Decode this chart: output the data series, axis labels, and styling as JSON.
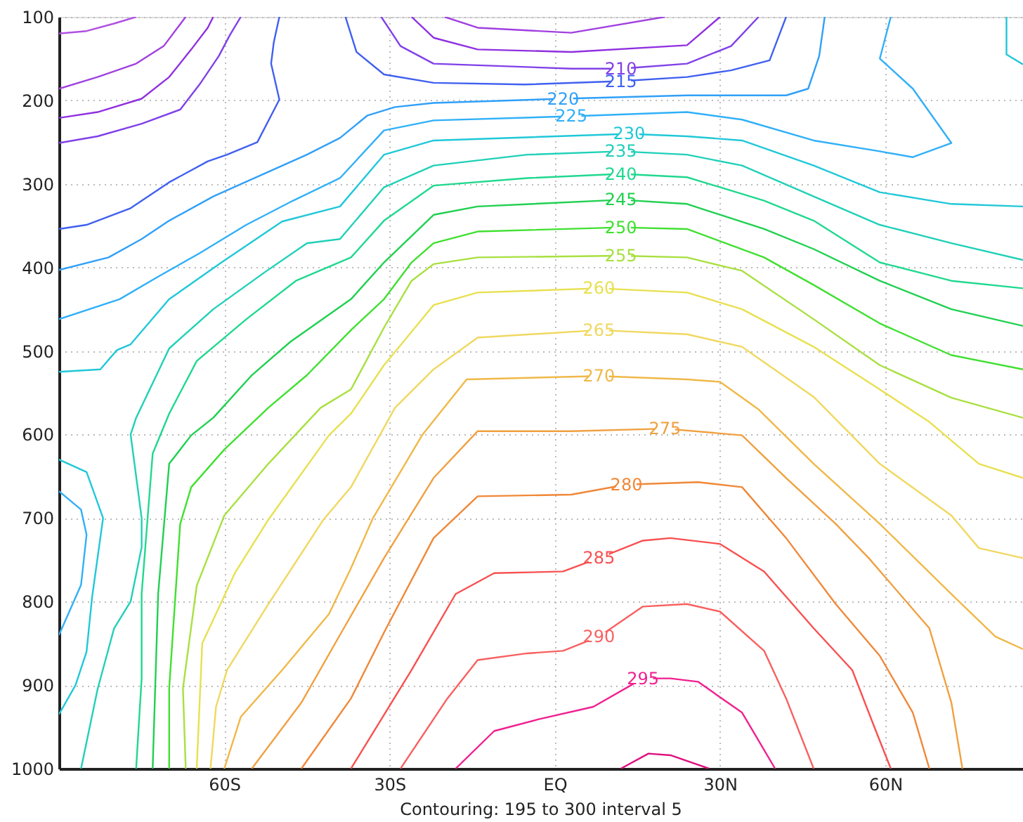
{
  "chart_data": {
    "type": "line",
    "xlim": [
      -90,
      85
    ],
    "ylim": [
      1000,
      100
    ],
    "xticks": [
      {
        "value": -60,
        "label": "60S"
      },
      {
        "value": -30,
        "label": "30S"
      },
      {
        "value": 0,
        "label": "EQ"
      },
      {
        "value": 30,
        "label": "30N"
      },
      {
        "value": 60,
        "label": "60N"
      }
    ],
    "yticks": [
      100,
      200,
      300,
      400,
      500,
      600,
      700,
      800,
      900,
      1000
    ],
    "grid": true,
    "annotations": [
      "Contouring: 195 to 300 interval 5"
    ],
    "series": [
      {
        "color": "#b050e0",
        "x": [
          -90,
          -85,
          -80,
          -76
        ],
        "values": [
          120,
          117,
          108,
          100
        ]
      },
      {
        "color": "#a040e0",
        "x": [
          -90,
          -83,
          -76,
          -71,
          -67
        ],
        "values": [
          186,
          172,
          156,
          135,
          100
        ]
      },
      {
        "color": "#a040e0",
        "x": [
          -20,
          -14,
          3,
          20
        ],
        "values": [
          100,
          113,
          119,
          100
        ]
      },
      {
        "color": "#9030e0",
        "x": [
          -90,
          -83,
          -75,
          -70,
          -66,
          -63,
          -62
        ],
        "values": [
          221,
          214,
          198,
          172,
          139,
          113,
          100
        ]
      },
      {
        "color": "#9030e0",
        "x": [
          -26,
          -22,
          -14,
          3,
          24,
          30
        ],
        "values": [
          100,
          125,
          139,
          142,
          134,
          100
        ]
      },
      {
        "color": "#8040e8",
        "x": [
          -90,
          -83,
          -75,
          -68,
          -64.5,
          -61,
          -59,
          -57
        ],
        "values": [
          251,
          243,
          228,
          211,
          181,
          147,
          122,
          100
        ]
      },
      {
        "name": "210",
        "color": "#8040e8",
        "x": [
          -31.5,
          -28,
          -22,
          3,
          12,
          24,
          32,
          37
        ],
        "values": [
          100,
          135,
          156,
          162,
          162,
          156,
          135,
          100
        ]
      },
      {
        "color": "#4060f0",
        "x": [
          -90,
          -85,
          -77,
          -70,
          -63,
          -59.5,
          -54,
          -50,
          -51.5,
          -51,
          -50
        ],
        "values": [
          354,
          349,
          329,
          298,
          273,
          265,
          250,
          199,
          156,
          130,
          100
        ]
      },
      {
        "name": "215",
        "color": "#4060f0",
        "x": [
          -38,
          -36,
          -31,
          -22,
          -5.5,
          12,
          24,
          32,
          39,
          42
        ],
        "values": [
          100,
          142,
          169,
          179,
          181,
          177,
          172,
          164,
          152,
          100
        ]
      },
      {
        "name": "220",
        "color": "#30a0f8",
        "x": [
          -90,
          -81,
          -75,
          -70,
          -62,
          -52.5,
          -45,
          -39,
          -34,
          -29,
          -22,
          1.5,
          24,
          42,
          46,
          48,
          49
        ],
        "values": [
          403,
          388,
          366,
          344,
          315,
          287,
          265,
          245,
          218,
          208,
          203,
          198,
          194,
          194,
          186,
          147,
          100
        ]
      },
      {
        "name": "225",
        "color": "#30b0f8",
        "x": [
          -90,
          -79,
          -72,
          -64.5,
          -56,
          -47.5,
          -39,
          -31,
          -22,
          3,
          24,
          34,
          47,
          59,
          65,
          72,
          65,
          59,
          61
        ],
        "values": [
          462,
          438,
          411,
          383,
          349,
          320,
          293,
          236,
          224,
          219,
          214,
          223,
          248,
          261,
          268,
          251,
          186,
          150,
          100
        ]
      },
      {
        "color": "#30b0f8",
        "x": [
          -90,
          -86,
          -85,
          -86,
          -90
        ],
        "values": [
          668,
          690,
          720,
          780,
          840
        ]
      },
      {
        "name": "230",
        "color": "#20c8d8",
        "x": [
          -90,
          -82.5,
          -79.5,
          -77,
          -70,
          -60.5,
          -49.5,
          -39,
          -31,
          -22,
          13.5,
          24,
          34,
          47,
          59,
          72,
          85
        ],
        "values": [
          525,
          522,
          499,
          492,
          438,
          394,
          345,
          327,
          265,
          248,
          240,
          243,
          248,
          278,
          310,
          324,
          327
        ]
      },
      {
        "color": "#20c8d8",
        "x": [
          82,
          82,
          85
        ],
        "values": [
          100,
          145,
          157
        ]
      },
      {
        "color": "#20c8d8",
        "x": [
          -90,
          -85,
          -82,
          -84,
          -85,
          -87,
          -90
        ],
        "values": [
          630,
          645,
          700,
          795,
          860,
          900,
          935
        ]
      },
      {
        "name": "235",
        "color": "#20d0b8",
        "x": [
          -86,
          -83,
          -80,
          -77,
          -75,
          -75,
          -77,
          -76,
          -70,
          -62,
          -52.5,
          -45,
          -39,
          -31,
          -22,
          -5,
          12,
          24,
          34,
          47,
          59,
          72,
          85
        ],
        "values": [
          1000,
          905,
          832,
          800,
          735,
          700,
          600,
          580,
          497,
          450,
          405,
          371,
          366,
          304,
          278,
          265,
          261,
          265,
          278,
          315,
          349,
          371,
          391
        ]
      },
      {
        "name": "240",
        "color": "#20d890",
        "x": [
          -76,
          -75,
          -75,
          -73,
          -70,
          -65,
          -56,
          -47,
          -37,
          -31,
          -22,
          -5,
          12,
          24,
          38,
          47,
          59,
          72,
          85
        ],
        "values": [
          1000,
          892,
          791,
          623,
          575,
          512,
          462,
          416,
          388,
          344,
          302,
          293,
          288,
          292,
          320,
          344,
          394,
          416,
          425
        ]
      },
      {
        "name": "245",
        "color": "#20d050",
        "x": [
          -73,
          -72,
          -70,
          -66,
          -62,
          -55,
          -48,
          -37,
          -31,
          -22,
          -14,
          12,
          24,
          38,
          47,
          59,
          72,
          85
        ],
        "values": [
          1000,
          791,
          635,
          601,
          580,
          529,
          489,
          438,
          394,
          337,
          327,
          319,
          324,
          354,
          378,
          416,
          450,
          470
        ]
      },
      {
        "name": "250",
        "color": "#40e030",
        "x": [
          -70,
          -70,
          -68,
          -66,
          -60,
          -52,
          -45,
          -37,
          -31,
          -26,
          -22,
          -14,
          12,
          24,
          38,
          47,
          59,
          72,
          85
        ],
        "values": [
          1000,
          904,
          707,
          663,
          618,
          568,
          529,
          475,
          438,
          394,
          371,
          357,
          352,
          354,
          388,
          421,
          467,
          505,
          522
        ]
      },
      {
        "name": "255",
        "color": "#a8e040",
        "x": [
          -67,
          -67.5,
          -65,
          -60,
          -52,
          -42.5,
          -37,
          -31,
          -26,
          -22,
          -14,
          12,
          24,
          34,
          47,
          59,
          72,
          85
        ],
        "values": [
          1000,
          904,
          781,
          697,
          635,
          568,
          546,
          472,
          416,
          396,
          388,
          386,
          388,
          404,
          462,
          517,
          556,
          580
        ]
      },
      {
        "name": "260",
        "color": "#e8e050",
        "x": [
          -65,
          -64,
          -58,
          -52,
          -41,
          -37,
          -31,
          -22,
          -14,
          8,
          24,
          34,
          47,
          59,
          68,
          77,
          85
        ],
        "values": [
          1000,
          850,
          765,
          702,
          601,
          575,
          517,
          445,
          430,
          425,
          430,
          450,
          495,
          546,
          585,
          635,
          652
        ]
      },
      {
        "name": "265",
        "color": "#f0d860",
        "x": [
          -62.5,
          -61.5,
          -59.5,
          -52,
          -42,
          -37,
          -29,
          -22,
          -14,
          8,
          24,
          34,
          47,
          59,
          72,
          77,
          85
        ],
        "values": [
          1000,
          926,
          882,
          803,
          702,
          663,
          568,
          522,
          484,
          475,
          480,
          495,
          555,
          635,
          697,
          736,
          748
        ]
      },
      {
        "name": "270",
        "color": "#f0b848",
        "x": [
          -60,
          -57,
          -49.5,
          -41,
          -37,
          -33,
          -24,
          -16,
          8,
          24,
          30,
          37,
          47,
          59,
          72,
          80,
          85
        ],
        "values": [
          1000,
          938,
          882,
          815,
          760,
          700,
          600,
          534,
          530,
          534,
          537,
          570,
          635,
          707,
          791,
          842,
          857
        ]
      },
      {
        "name": "275",
        "color": "#f0a040",
        "x": [
          -55,
          -46,
          -39,
          -31,
          -22,
          -14,
          3,
          20,
          34,
          42,
          51,
          57,
          68,
          72,
          74
        ],
        "values": [
          1000,
          921,
          840,
          748,
          652,
          596,
          596,
          593,
          601,
          652,
          707,
          748,
          832,
          921,
          1000
        ]
      },
      {
        "name": "280",
        "color": "#f08838",
        "x": [
          -46,
          -37,
          -31,
          -22,
          -14,
          3,
          13,
          26,
          34,
          42,
          51,
          59,
          65,
          68
        ],
        "values": [
          1000,
          916,
          837,
          724,
          674,
          672,
          660,
          657,
          663,
          724,
          803,
          865,
          933,
          1000
        ]
      },
      {
        "name": "285",
        "color": "#f85050",
        "x": [
          -37,
          -26,
          -18,
          -11,
          1.5,
          8,
          16,
          21,
          30,
          38,
          47,
          54,
          58,
          61
        ],
        "values": [
          1000,
          882,
          791,
          766,
          764,
          748,
          727,
          724,
          731,
          764,
          832,
          882,
          950,
          1000
        ]
      },
      {
        "name": "290",
        "color": "#f86060",
        "x": [
          -28,
          -19.5,
          -14,
          -5,
          1.5,
          8,
          16,
          24,
          30,
          38,
          42,
          47
        ],
        "values": [
          1000,
          916,
          870,
          862,
          859,
          842,
          806,
          803,
          812,
          859,
          916,
          1000
        ]
      },
      {
        "name": "295",
        "color": "#f02090",
        "x": [
          -18,
          -11,
          -3,
          7,
          16,
          21,
          26,
          34,
          40
        ],
        "values": [
          1000,
          955,
          941,
          926,
          892,
          892,
          896,
          933,
          1000
        ]
      },
      {
        "color": "#e01080",
        "x": [
          12,
          17,
          21,
          28
        ],
        "values": [
          1000,
          982,
          984,
          1000
        ]
      }
    ]
  }
}
